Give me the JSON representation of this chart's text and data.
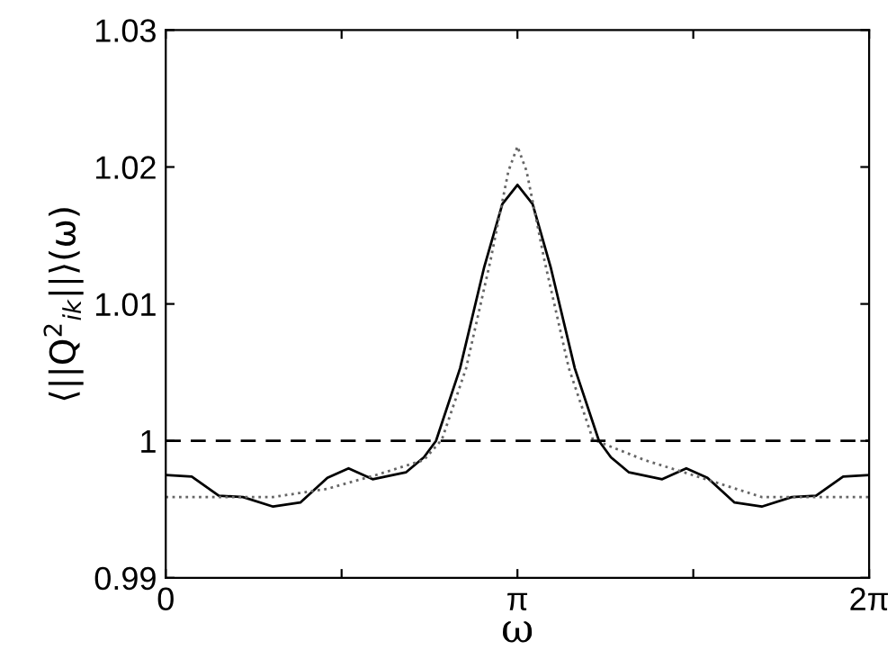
{
  "chart_data": {
    "type": "line",
    "xlabel": "ω",
    "ylabel": "⟨||Q$^{2}$$_{ik}$||⟩(ω)",
    "xlim": [
      0,
      6.2832
    ],
    "ylim": [
      0.99,
      1.03
    ],
    "xticks": [
      0,
      {
        "value": 1.5708,
        "label": null
      },
      {
        "value": 3.1416,
        "label": "π"
      },
      {
        "value": 4.7124,
        "label": null
      },
      {
        "value": 6.2832,
        "label": "2π"
      }
    ],
    "yticks": [
      0.99,
      1,
      1.01,
      1.02,
      1.03
    ],
    "grid": false,
    "legend": false,
    "series": [
      {
        "color": "#000000",
        "line_style": "solid",
        "x": [
          0,
          0.232,
          0.474,
          0.69,
          0.959,
          1.202,
          1.444,
          1.633,
          1.848,
          2.145,
          2.306,
          2.414,
          2.629,
          2.845,
          3.007,
          3.142,
          3.277,
          3.438,
          3.654,
          3.87,
          3.977,
          4.138,
          4.435,
          4.65,
          4.839,
          5.081,
          5.324,
          5.593,
          5.809,
          6.051,
          6.283
        ],
        "values": [
          0.9975,
          0.9974,
          0.996,
          0.9959,
          0.9952,
          0.9955,
          0.9973,
          0.998,
          0.9972,
          0.9977,
          0.9988,
          1.0,
          1.0053,
          1.0127,
          1.0173,
          1.0187,
          1.0173,
          1.0127,
          1.0053,
          1.0,
          0.9988,
          0.9977,
          0.9972,
          0.998,
          0.9973,
          0.9955,
          0.9952,
          0.9959,
          0.996,
          0.9974,
          0.9975
        ]
      },
      {
        "color": "#666666",
        "line_style": "dotted",
        "x": [
          0,
          0.797,
          0.959,
          1.444,
          1.876,
          2.306,
          2.467,
          2.683,
          2.899,
          3.061,
          3.142,
          3.223,
          3.385,
          3.601,
          3.816,
          4.277,
          4.708,
          5.324,
          5.486,
          6.283
        ],
        "values": [
          0.9959,
          0.9959,
          0.9959,
          0.9965,
          0.9975,
          0.9986,
          1.0001,
          1.0053,
          1.0131,
          1.0197,
          1.0215,
          1.0197,
          1.0131,
          1.0053,
          1.0001,
          0.9986,
          0.9975,
          0.9959,
          0.9959,
          0.9959
        ]
      }
    ],
    "ref_lines": [
      {
        "axis": "y",
        "value": 1,
        "color": "#000000",
        "line_style": "dashed"
      }
    ]
  }
}
